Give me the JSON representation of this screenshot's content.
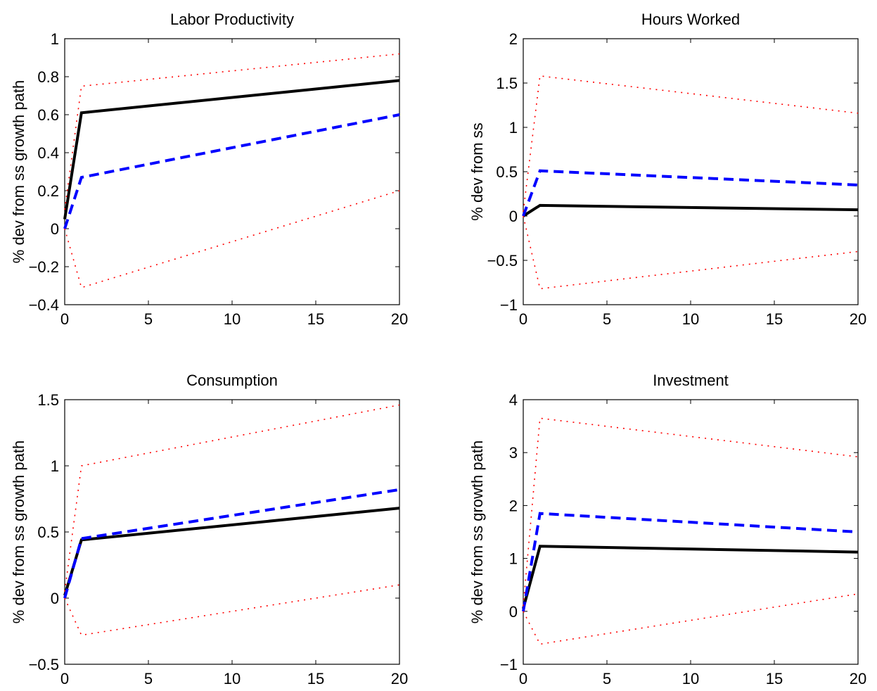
{
  "styles": {
    "point_estimate": {
      "color": "#000000",
      "dash": "solid"
    },
    "alt_model": {
      "color": "#0000ff",
      "dash": "dashed"
    },
    "bands": {
      "color": "#ff0000",
      "dash": "dotted"
    }
  },
  "chart_data": [
    {
      "type": "line",
      "title": "Labor Productivity",
      "xlabel": "",
      "ylabel": "% dev from ss growth path",
      "xlim": [
        0,
        20
      ],
      "ylim": [
        -0.4,
        1
      ],
      "xticks": [
        0,
        5,
        10,
        15,
        20
      ],
      "yticks": [
        -0.4,
        -0.2,
        0,
        0.2,
        0.4,
        0.6,
        0.8,
        1
      ],
      "ytick_labels": [
        "−0.4",
        "−0.2",
        "0",
        "0.2",
        "0.4",
        "0.6",
        "0.8",
        "1"
      ],
      "x": [
        0,
        1,
        20
      ],
      "series": [
        {
          "style": "point_estimate",
          "values": [
            0.05,
            0.61,
            0.78
          ]
        },
        {
          "style": "alt_model",
          "values": [
            0.0,
            0.27,
            0.6
          ]
        },
        {
          "style": "bands",
          "values": [
            0.1,
            0.75,
            0.92
          ]
        },
        {
          "style": "bands",
          "values": [
            0.0,
            -0.31,
            0.2
          ]
        }
      ]
    },
    {
      "type": "line",
      "title": "Hours Worked",
      "xlabel": "",
      "ylabel": "% dev from ss",
      "xlim": [
        0,
        20
      ],
      "ylim": [
        -1,
        2
      ],
      "xticks": [
        0,
        5,
        10,
        15,
        20
      ],
      "yticks": [
        -1,
        -0.5,
        0,
        0.5,
        1,
        1.5,
        2
      ],
      "ytick_labels": [
        "−1",
        "−0.5",
        "0",
        "0.5",
        "1",
        "1.5",
        "2"
      ],
      "x": [
        0,
        1,
        20
      ],
      "series": [
        {
          "style": "point_estimate",
          "values": [
            0.0,
            0.12,
            0.07
          ]
        },
        {
          "style": "alt_model",
          "values": [
            0.0,
            0.51,
            0.35
          ]
        },
        {
          "style": "bands",
          "values": [
            0.05,
            1.58,
            1.16
          ]
        },
        {
          "style": "bands",
          "values": [
            0.0,
            -0.82,
            -0.4
          ]
        }
      ]
    },
    {
      "type": "line",
      "title": "Consumption",
      "xlabel": "",
      "ylabel": "% dev from ss growth path",
      "xlim": [
        0,
        20
      ],
      "ylim": [
        -0.5,
        1.5
      ],
      "xticks": [
        0,
        5,
        10,
        15,
        20
      ],
      "yticks": [
        -0.5,
        0,
        0.5,
        1,
        1.5
      ],
      "ytick_labels": [
        "−0.5",
        "0",
        "0.5",
        "1",
        "1.5"
      ],
      "x": [
        0,
        1,
        20
      ],
      "series": [
        {
          "style": "point_estimate",
          "values": [
            0.02,
            0.44,
            0.68
          ]
        },
        {
          "style": "alt_model",
          "values": [
            0.0,
            0.45,
            0.82
          ]
        },
        {
          "style": "bands",
          "values": [
            0.05,
            1.0,
            1.46
          ]
        },
        {
          "style": "bands",
          "values": [
            0.0,
            -0.28,
            0.1
          ]
        }
      ]
    },
    {
      "type": "line",
      "title": "Investment",
      "xlabel": "",
      "ylabel": "% dev from ss growth path",
      "xlim": [
        0,
        20
      ],
      "ylim": [
        -1,
        4
      ],
      "xticks": [
        0,
        5,
        10,
        15,
        20
      ],
      "yticks": [
        -1,
        0,
        1,
        2,
        3,
        4
      ],
      "ytick_labels": [
        "−1",
        "0",
        "1",
        "2",
        "3",
        "4"
      ],
      "x": [
        0,
        1,
        20
      ],
      "series": [
        {
          "style": "point_estimate",
          "values": [
            0.05,
            1.23,
            1.12
          ]
        },
        {
          "style": "alt_model",
          "values": [
            0.0,
            1.85,
            1.5
          ]
        },
        {
          "style": "bands",
          "values": [
            0.1,
            3.65,
            2.92
          ]
        },
        {
          "style": "bands",
          "values": [
            0.0,
            -0.62,
            0.33
          ]
        }
      ]
    }
  ]
}
